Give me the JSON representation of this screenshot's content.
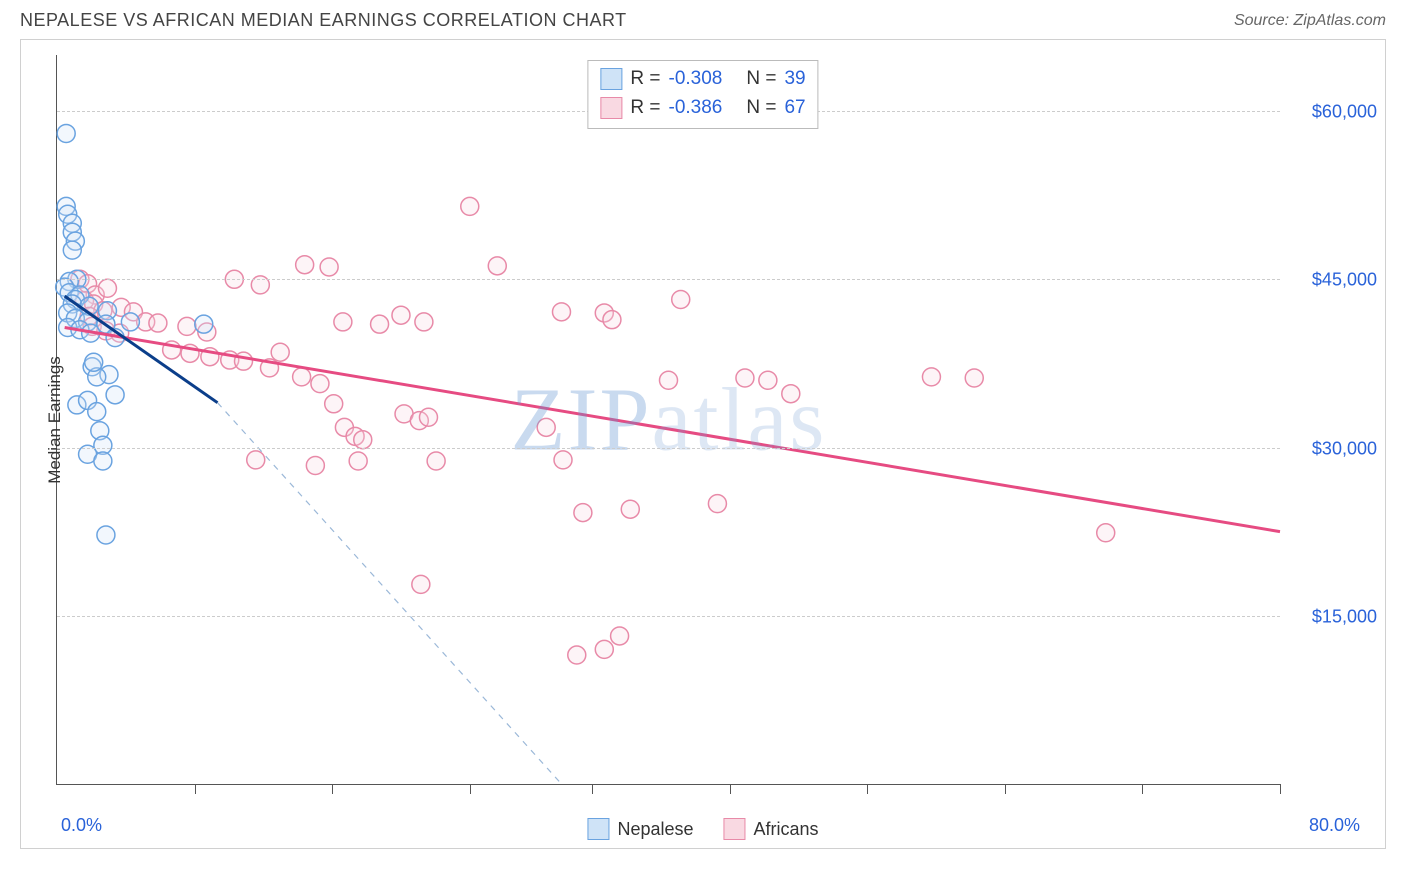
{
  "title": "NEPALESE VS AFRICAN MEDIAN EARNINGS CORRELATION CHART",
  "source": "Source: ZipAtlas.com",
  "watermark": {
    "part1": "ZIP",
    "part2": "atlas"
  },
  "chart": {
    "type": "scatter",
    "ylabel": "Median Earnings",
    "xlim": [
      0,
      80
    ],
    "ylim": [
      0,
      65000
    ],
    "background_color": "#ffffff",
    "grid_color": "#cccccc",
    "grid_dash": true,
    "axis_color": "#555555",
    "ytick_values": [
      15000,
      30000,
      45000,
      60000
    ],
    "ytick_labels": [
      "$15,000",
      "$30,000",
      "$45,000",
      "$60,000"
    ],
    "ytick_label_color": "#2962d9",
    "ytick_label_fontsize": 18,
    "xtick_positions": [
      9,
      18,
      27,
      35,
      44,
      53,
      62,
      71,
      80
    ],
    "xaxis_end_labels": {
      "left": "0.0%",
      "right": "80.0%"
    },
    "marker_radius": 9,
    "marker_stroke_width": 1.5,
    "marker_fill_opacity": 0.28,
    "trend_line_width": 3,
    "trend_dash_width": 1.2,
    "series": [
      {
        "name": "Nepalese",
        "color_fill": "#cfe3f7",
        "color_stroke": "#6aa3e0",
        "trend_color": "#0b3e8a",
        "R": "-0.308",
        "N": "39",
        "trend": {
          "x1": 0.5,
          "y1": 43500,
          "x2": 10.5,
          "y2": 34000
        },
        "trend_extrap": {
          "x1": 10.5,
          "y1": 34000,
          "x2": 33,
          "y2": 0
        },
        "points": [
          [
            0.6,
            58000
          ],
          [
            0.6,
            51500
          ],
          [
            0.7,
            50800
          ],
          [
            1.0,
            50000
          ],
          [
            1.0,
            49200
          ],
          [
            1.2,
            48400
          ],
          [
            1.0,
            47600
          ],
          [
            1.3,
            45000
          ],
          [
            0.8,
            44800
          ],
          [
            0.5,
            44300
          ],
          [
            0.8,
            43800
          ],
          [
            1.5,
            43600
          ],
          [
            1.2,
            43200
          ],
          [
            1.0,
            42800
          ],
          [
            2.1,
            42600
          ],
          [
            3.3,
            42200
          ],
          [
            0.7,
            42000
          ],
          [
            1.2,
            41500
          ],
          [
            2.0,
            41200
          ],
          [
            3.2,
            41000
          ],
          [
            4.8,
            41200
          ],
          [
            9.6,
            41000
          ],
          [
            0.7,
            40700
          ],
          [
            1.5,
            40500
          ],
          [
            2.2,
            40200
          ],
          [
            3.8,
            39800
          ],
          [
            2.3,
            37200
          ],
          [
            3.4,
            36500
          ],
          [
            2.6,
            36300
          ],
          [
            3.8,
            34700
          ],
          [
            1.3,
            33800
          ],
          [
            2.8,
            31500
          ],
          [
            3.0,
            30200
          ],
          [
            2.0,
            29400
          ],
          [
            3.0,
            28800
          ],
          [
            2.0,
            34200
          ],
          [
            2.6,
            33200
          ],
          [
            2.4,
            37600
          ],
          [
            3.2,
            22200
          ]
        ]
      },
      {
        "name": "Africans",
        "color_fill": "#f9d9e2",
        "color_stroke": "#e88aa8",
        "trend_color": "#e64b82",
        "R": "-0.386",
        "N": "67",
        "trend": {
          "x1": 0.5,
          "y1": 40700,
          "x2": 80,
          "y2": 22500
        },
        "points": [
          [
            1.5,
            45000
          ],
          [
            2.0,
            44600
          ],
          [
            2.5,
            43600
          ],
          [
            3.3,
            44200
          ],
          [
            1.8,
            43100
          ],
          [
            2.4,
            42800
          ],
          [
            3.0,
            42200
          ],
          [
            4.2,
            42500
          ],
          [
            2.1,
            41700
          ],
          [
            5.0,
            42100
          ],
          [
            2.3,
            40800
          ],
          [
            3.2,
            40400
          ],
          [
            4.1,
            40200
          ],
          [
            5.8,
            41200
          ],
          [
            6.6,
            41100
          ],
          [
            8.5,
            40800
          ],
          [
            9.8,
            40300
          ],
          [
            11.6,
            45000
          ],
          [
            13.3,
            44500
          ],
          [
            16.2,
            46300
          ],
          [
            17.8,
            46100
          ],
          [
            18.7,
            41200
          ],
          [
            21.1,
            41000
          ],
          [
            22.5,
            41800
          ],
          [
            24.0,
            41200
          ],
          [
            27.0,
            51500
          ],
          [
            28.8,
            46200
          ],
          [
            33.0,
            42100
          ],
          [
            35.8,
            42000
          ],
          [
            36.3,
            41400
          ],
          [
            40.8,
            43200
          ],
          [
            7.5,
            38700
          ],
          [
            8.7,
            38400
          ],
          [
            10.0,
            38100
          ],
          [
            11.3,
            37800
          ],
          [
            12.2,
            37700
          ],
          [
            13.9,
            37100
          ],
          [
            14.6,
            38500
          ],
          [
            16.0,
            36300
          ],
          [
            17.2,
            35700
          ],
          [
            18.1,
            33900
          ],
          [
            18.8,
            31800
          ],
          [
            19.5,
            31000
          ],
          [
            20.0,
            30700
          ],
          [
            22.7,
            33000
          ],
          [
            23.7,
            32400
          ],
          [
            24.3,
            32700
          ],
          [
            24.8,
            28800
          ],
          [
            13.0,
            28900
          ],
          [
            16.9,
            28400
          ],
          [
            19.7,
            28800
          ],
          [
            32.0,
            31800
          ],
          [
            33.1,
            28900
          ],
          [
            34.4,
            24200
          ],
          [
            35.8,
            12000
          ],
          [
            37.5,
            24500
          ],
          [
            43.2,
            25000
          ],
          [
            40.0,
            36000
          ],
          [
            45.0,
            36200
          ],
          [
            46.5,
            36000
          ],
          [
            48.0,
            34800
          ],
          [
            57.2,
            36300
          ],
          [
            60.0,
            36200
          ],
          [
            68.6,
            22400
          ],
          [
            23.8,
            17800
          ],
          [
            34.0,
            11500
          ],
          [
            36.8,
            13200
          ]
        ]
      }
    ]
  },
  "legend": {
    "top_box_position": "top-center",
    "bottom_labels": [
      "Nepalese",
      "Africans"
    ]
  }
}
